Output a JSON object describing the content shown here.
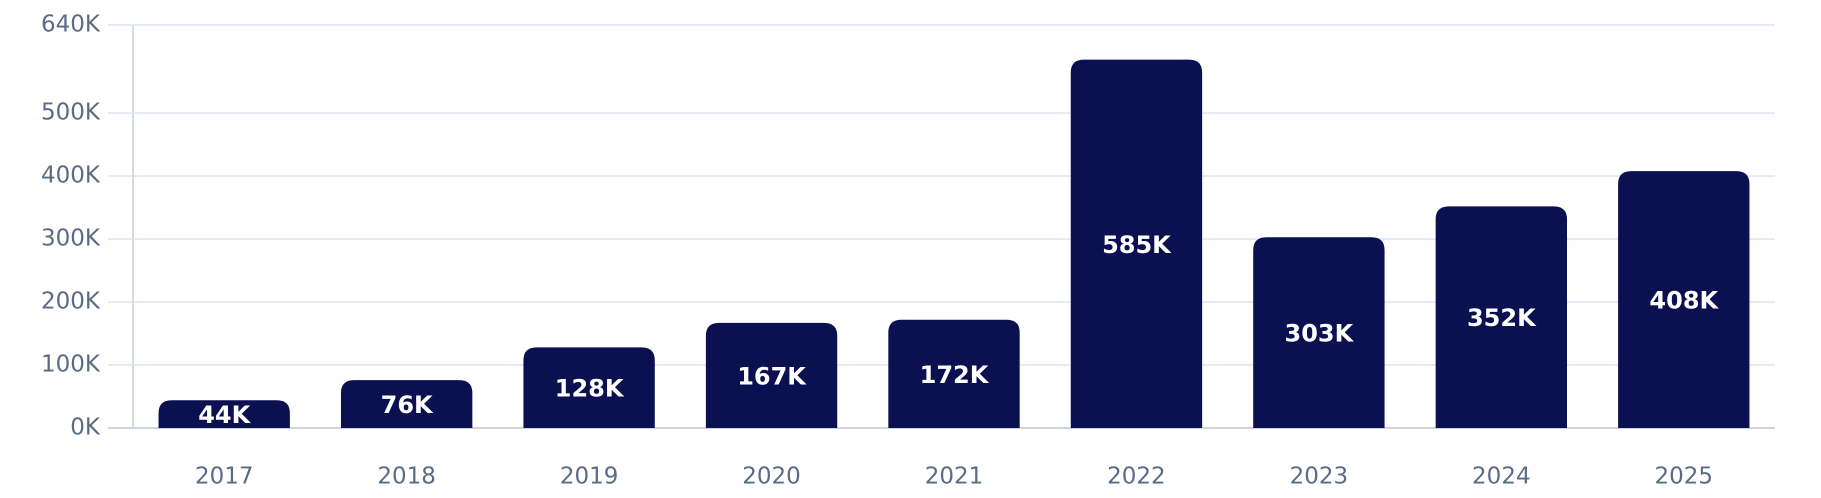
{
  "chart_data": {
    "type": "bar",
    "categories": [
      "2017",
      "2018",
      "2019",
      "2020",
      "2021",
      "2022",
      "2023",
      "2024",
      "2025"
    ],
    "values": [
      44000,
      76000,
      128000,
      167000,
      172000,
      585000,
      303000,
      352000,
      408000
    ],
    "value_labels": [
      "44K",
      "76K",
      "128K",
      "167K",
      "172K",
      "585K",
      "303K",
      "352K",
      "408K"
    ],
    "color": "#0b1150",
    "ylim": [
      0,
      640000
    ],
    "yticks": [
      {
        "value": 0,
        "label": "0K"
      },
      {
        "value": 100000,
        "label": "100K"
      },
      {
        "value": 200000,
        "label": "200K"
      },
      {
        "value": 300000,
        "label": "300K"
      },
      {
        "value": 400000,
        "label": "400K"
      },
      {
        "value": 500000,
        "label": "500K"
      },
      {
        "value": 640000,
        "label": "640K"
      }
    ],
    "grid": true
  }
}
